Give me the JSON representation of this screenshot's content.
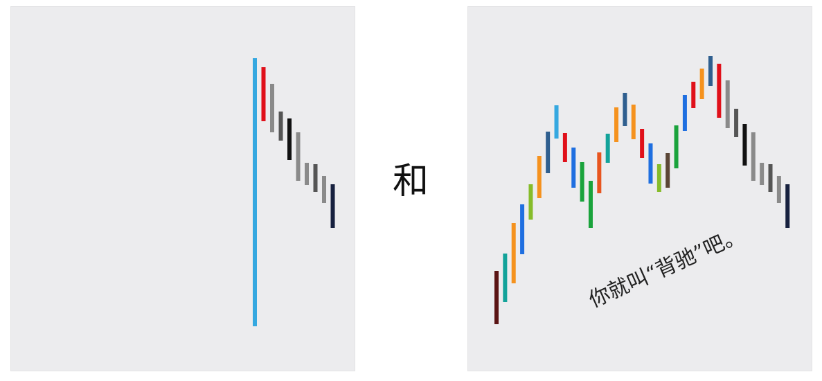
{
  "connector_text": "和",
  "caption_text": "你就叫“背驰”吧。",
  "colors": {
    "panel_bg": "#ececee",
    "sky_blue": "#35a8e0",
    "red": "#e0101a",
    "gray": "#8a8a8a",
    "dark_gray": "#555555",
    "black": "#111111",
    "navy": "#17213f",
    "orange": "#f5921e",
    "blue": "#1f6fe0",
    "lime": "#86bc2a",
    "teal": "#13a39a",
    "steel_blue": "#2f5f8f",
    "green": "#1aa33c",
    "orange_red": "#e8551f",
    "brown": "#5b4636",
    "maroon": "#5a1414"
  },
  "chart_data": [
    {
      "type": "bar-segments",
      "description_panel": "left",
      "segments": [
        {
          "color": "sky_blue",
          "top": 83,
          "bottom": 470
        },
        {
          "color": "red",
          "top": 96,
          "bottom": 174
        },
        {
          "color": "gray",
          "top": 120,
          "bottom": 190
        },
        {
          "color": "dark_gray",
          "top": 160,
          "bottom": 202
        },
        {
          "color": "black",
          "top": 170,
          "bottom": 230
        },
        {
          "color": "gray",
          "top": 190,
          "bottom": 260
        },
        {
          "color": "gray",
          "top": 234,
          "bottom": 266
        },
        {
          "color": "dark_gray",
          "top": 236,
          "bottom": 276
        },
        {
          "color": "gray",
          "top": 253,
          "bottom": 292
        },
        {
          "color": "navy",
          "top": 265,
          "bottom": 328
        }
      ]
    },
    {
      "type": "bar-segments",
      "description_panel": "right",
      "segments": [
        {
          "color": "maroon",
          "top": 390,
          "bottom": 467
        },
        {
          "color": "teal",
          "top": 365,
          "bottom": 435
        },
        {
          "color": "orange",
          "top": 321,
          "bottom": 408
        },
        {
          "color": "blue",
          "top": 294,
          "bottom": 366
        },
        {
          "color": "lime",
          "top": 265,
          "bottom": 316
        },
        {
          "color": "orange",
          "top": 224,
          "bottom": 285
        },
        {
          "color": "steel_blue",
          "top": 189,
          "bottom": 249
        },
        {
          "color": "sky_blue",
          "top": 151,
          "bottom": 199
        },
        {
          "color": "red",
          "top": 191,
          "bottom": 233
        },
        {
          "color": "blue",
          "top": 212,
          "bottom": 270
        },
        {
          "color": "green",
          "top": 233,
          "bottom": 290
        },
        {
          "color": "green",
          "top": 260,
          "bottom": 328
        },
        {
          "color": "orange_red",
          "top": 219,
          "bottom": 278
        },
        {
          "color": "teal",
          "top": 192,
          "bottom": 234
        },
        {
          "color": "orange",
          "top": 154,
          "bottom": 204
        },
        {
          "color": "steel_blue",
          "top": 133,
          "bottom": 181
        },
        {
          "color": "orange",
          "top": 150,
          "bottom": 200
        },
        {
          "color": "red",
          "top": 185,
          "bottom": 227
        },
        {
          "color": "blue",
          "top": 206,
          "bottom": 264
        },
        {
          "color": "lime",
          "top": 236,
          "bottom": 276
        },
        {
          "color": "brown",
          "top": 220,
          "bottom": 270
        },
        {
          "color": "green",
          "top": 180,
          "bottom": 242
        },
        {
          "color": "blue",
          "top": 136,
          "bottom": 188
        },
        {
          "color": "red",
          "top": 117,
          "bottom": 155
        },
        {
          "color": "orange",
          "top": 98,
          "bottom": 142
        },
        {
          "color": "steel_blue",
          "top": 80,
          "bottom": 123
        },
        {
          "color": "red",
          "top": 91,
          "bottom": 169
        },
        {
          "color": "gray",
          "top": 115,
          "bottom": 184
        },
        {
          "color": "dark_gray",
          "top": 156,
          "bottom": 197
        },
        {
          "color": "black",
          "top": 178,
          "bottom": 238
        },
        {
          "color": "gray",
          "top": 190,
          "bottom": 260
        },
        {
          "color": "gray",
          "top": 234,
          "bottom": 266
        },
        {
          "color": "dark_gray",
          "top": 236,
          "bottom": 276
        },
        {
          "color": "gray",
          "top": 253,
          "bottom": 292
        },
        {
          "color": "navy",
          "top": 265,
          "bottom": 328
        }
      ]
    }
  ]
}
